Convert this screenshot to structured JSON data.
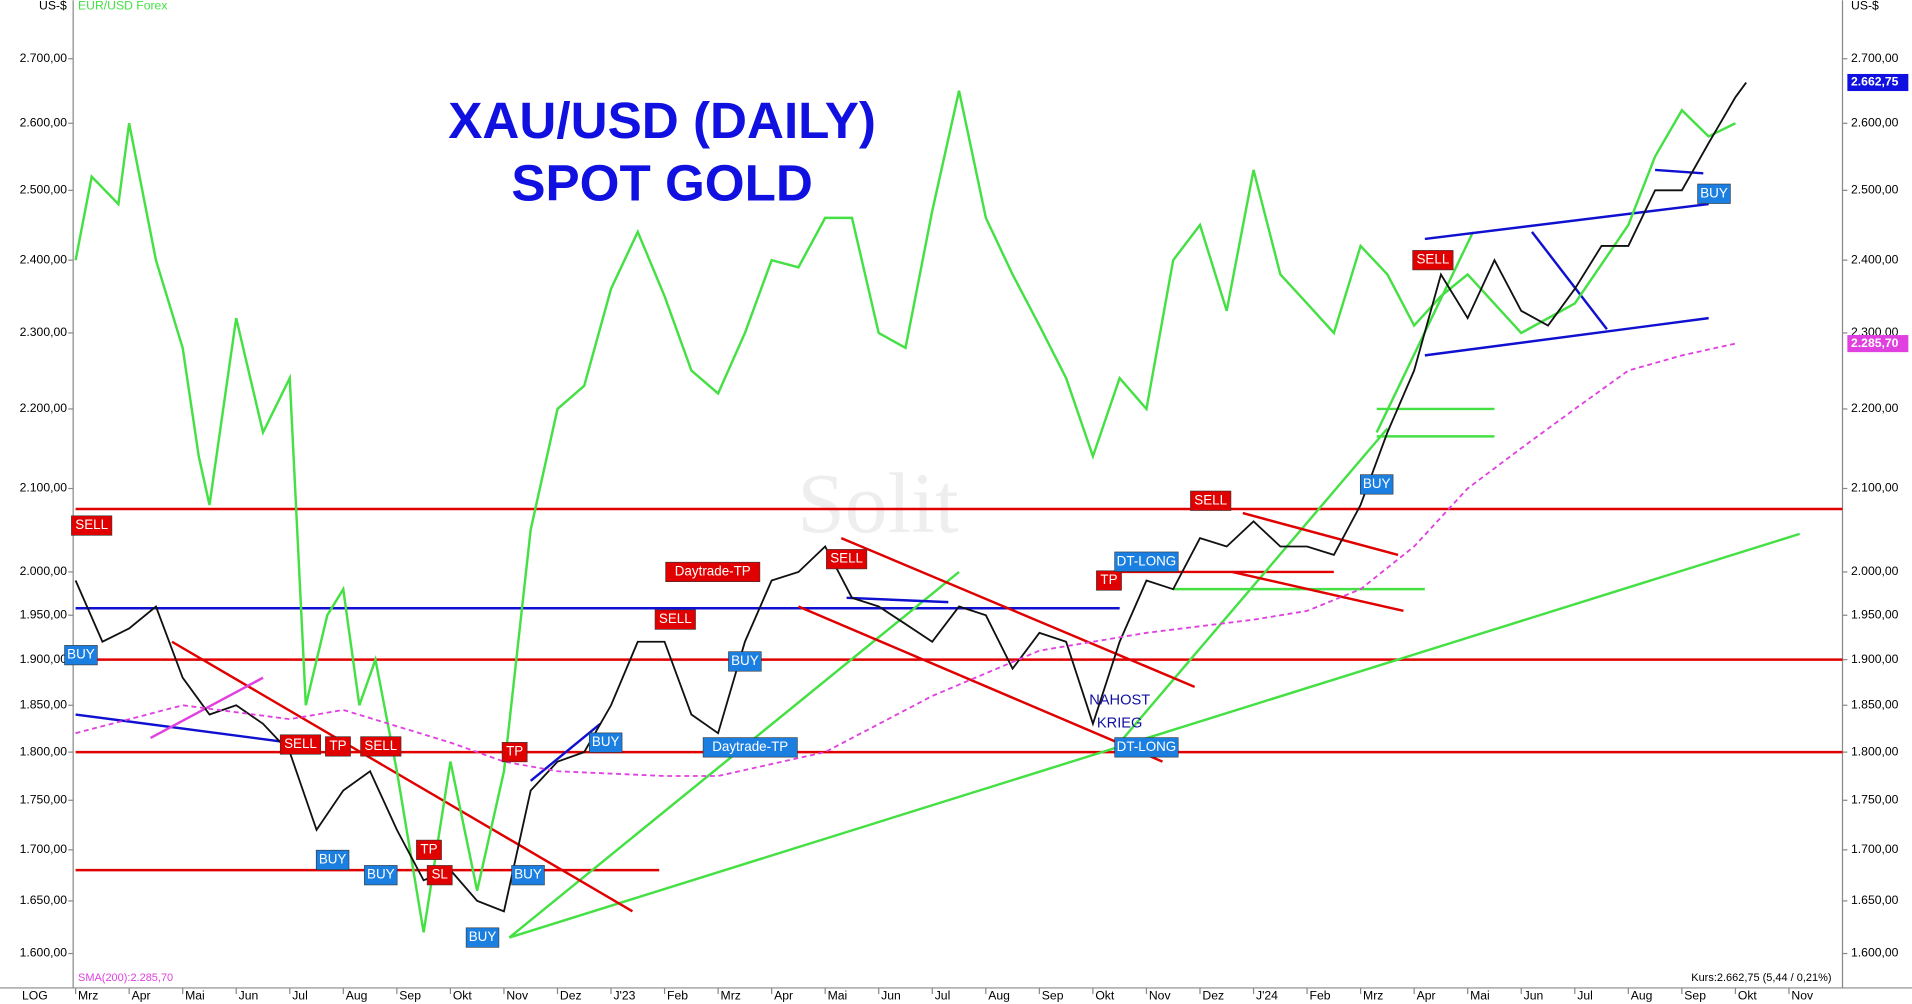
{
  "chart_data": {
    "type": "line",
    "title": "XAU/USD (DAILY)",
    "subtitle": "SPOT GOLD",
    "y_unit": "US-$",
    "overlay_label": "EUR/USD Forex",
    "scale_label": "LOG",
    "watermark": "Solit",
    "log_scale": true,
    "grid": false,
    "xlim": [
      0,
      33
    ],
    "xticks": [
      {
        "value": 0,
        "label": "Mrz"
      },
      {
        "value": 1,
        "label": "Apr"
      },
      {
        "value": 2,
        "label": "Mai"
      },
      {
        "value": 3,
        "label": "Jun"
      },
      {
        "value": 4,
        "label": "Jul"
      },
      {
        "value": 5,
        "label": "Aug"
      },
      {
        "value": 6,
        "label": "Sep"
      },
      {
        "value": 7,
        "label": "Okt"
      },
      {
        "value": 8,
        "label": "Nov"
      },
      {
        "value": 9,
        "label": "Dez"
      },
      {
        "value": 10,
        "label": "J'23"
      },
      {
        "value": 11,
        "label": "Feb"
      },
      {
        "value": 12,
        "label": "Mrz"
      },
      {
        "value": 13,
        "label": "Apr"
      },
      {
        "value": 14,
        "label": "Mai"
      },
      {
        "value": 15,
        "label": "Jun"
      },
      {
        "value": 16,
        "label": "Jul"
      },
      {
        "value": 17,
        "label": "Aug"
      },
      {
        "value": 18,
        "label": "Sep"
      },
      {
        "value": 19,
        "label": "Okt"
      },
      {
        "value": 20,
        "label": "Nov"
      },
      {
        "value": 21,
        "label": "Dez"
      },
      {
        "value": 22,
        "label": "J'24"
      },
      {
        "value": 23,
        "label": "Feb"
      },
      {
        "value": 24,
        "label": "Mrz"
      },
      {
        "value": 25,
        "label": "Apr"
      },
      {
        "value": 26,
        "label": "Mai"
      },
      {
        "value": 27,
        "label": "Jun"
      },
      {
        "value": 28,
        "label": "Jul"
      },
      {
        "value": 29,
        "label": "Aug"
      },
      {
        "value": 30,
        "label": "Sep"
      },
      {
        "value": 31,
        "label": "Okt"
      },
      {
        "value": 32,
        "label": "Nov"
      }
    ],
    "ylim": [
      1585,
      2794
    ],
    "yticks": [
      {
        "value": 1600,
        "label": "1.600,00"
      },
      {
        "value": 1650,
        "label": "1.650,00"
      },
      {
        "value": 1700,
        "label": "1.700,00"
      },
      {
        "value": 1750,
        "label": "1.750,00"
      },
      {
        "value": 1800,
        "label": "1.800,00"
      },
      {
        "value": 1850,
        "label": "1.850,00"
      },
      {
        "value": 1900,
        "label": "1.900,00"
      },
      {
        "value": 1950,
        "label": "1.950,00"
      },
      {
        "value": 2000,
        "label": "2.000,00"
      },
      {
        "value": 2100,
        "label": "2.100,00"
      },
      {
        "value": 2200,
        "label": "2.200,00"
      },
      {
        "value": 2300,
        "label": "2.300,00"
      },
      {
        "value": 2400,
        "label": "2.400,00"
      },
      {
        "value": 2500,
        "label": "2.500,00"
      },
      {
        "value": 2600,
        "label": "2.600,00"
      },
      {
        "value": 2700,
        "label": "2.700,00"
      }
    ],
    "series": [
      {
        "name": "EUR/USD Forex",
        "color": "#44e044",
        "x": [
          0,
          0.3,
          0.8,
          1,
          1.5,
          2,
          2.3,
          2.5,
          3,
          3.5,
          4,
          4.3,
          4.7,
          5,
          5.3,
          5.6,
          6,
          6.5,
          7,
          7.5,
          8,
          8.5,
          9,
          9.5,
          10,
          10.5,
          11,
          11.5,
          12,
          12.5,
          13,
          13.5,
          14,
          14.5,
          15,
          15.5,
          16,
          16.5,
          17,
          17.5,
          18,
          18.5,
          19,
          19.5,
          20,
          20.5,
          21,
          21.5,
          22,
          22.5,
          23,
          23.5,
          24,
          24.5,
          25,
          25.5,
          26,
          27,
          28,
          29,
          29.5,
          30,
          30.5,
          31
        ],
        "values": [
          2400,
          2520,
          2480,
          2600,
          2400,
          2280,
          2140,
          2080,
          2320,
          2170,
          2240,
          1850,
          1950,
          1980,
          1850,
          1900,
          1780,
          1620,
          1790,
          1660,
          1780,
          2050,
          2200,
          2230,
          2360,
          2440,
          2350,
          2250,
          2220,
          2300,
          2400,
          2390,
          2460,
          2460,
          2300,
          2280,
          2470,
          2650,
          2460,
          2380,
          2310,
          2240,
          2140,
          2240,
          2200,
          2400,
          2450,
          2330,
          2530,
          2380,
          2340,
          2300,
          2420,
          2380,
          2310,
          2350,
          2380,
          2300,
          2340,
          2450,
          2550,
          2620,
          2580,
          2600
        ]
      },
      {
        "name": "XAU/USD",
        "color": "#111111",
        "x": [
          0,
          0.5,
          1,
          1.5,
          2,
          2.5,
          3,
          3.5,
          4,
          4.5,
          5,
          5.5,
          6,
          6.5,
          7,
          7.5,
          8,
          8.5,
          9,
          9.5,
          10,
          10.5,
          11,
          11.5,
          12,
          12.5,
          13,
          13.5,
          14,
          14.5,
          15,
          15.5,
          16,
          16.5,
          17,
          17.5,
          18,
          18.5,
          19,
          19.5,
          20,
          20.5,
          21,
          21.5,
          22,
          22.5,
          23,
          23.5,
          24,
          24.5,
          25,
          25.5,
          26,
          26.5,
          27,
          27.5,
          28,
          28.5,
          29,
          29.5,
          30,
          30.5,
          31,
          31.2
        ],
        "values": [
          1990,
          1920,
          1935,
          1960,
          1880,
          1840,
          1850,
          1830,
          1800,
          1720,
          1760,
          1780,
          1720,
          1670,
          1680,
          1650,
          1640,
          1760,
          1790,
          1800,
          1850,
          1920,
          1920,
          1840,
          1820,
          1920,
          1990,
          2000,
          2030,
          1970,
          1960,
          1940,
          1920,
          1960,
          1950,
          1890,
          1930,
          1920,
          1830,
          1920,
          1990,
          1980,
          2040,
          2030,
          2060,
          2030,
          2030,
          2020,
          2080,
          2170,
          2250,
          2380,
          2320,
          2400,
          2330,
          2310,
          2360,
          2420,
          2420,
          2500,
          2500,
          2570,
          2640,
          2662.75
        ]
      },
      {
        "name": "SMA(200):2.285,70",
        "color": "#e040e0",
        "x": [
          0,
          2,
          4,
          5,
          7,
          8,
          9,
          11,
          12,
          14,
          16,
          18,
          20,
          22,
          23,
          24,
          25,
          26,
          27,
          28,
          29,
          30,
          31
        ],
        "values": [
          1820,
          1850,
          1835,
          1845,
          1810,
          1790,
          1780,
          1775,
          1775,
          1800,
          1860,
          1910,
          1930,
          1945,
          1955,
          1980,
          2030,
          2100,
          2150,
          2200,
          2250,
          2270,
          2285.7
        ]
      }
    ],
    "last_price": {
      "value": 2662.75,
      "label": "2.662,75",
      "color": "#1010e0"
    },
    "sma_last": {
      "value": 2285.7,
      "label": "2.285,70",
      "color": "#e040e0"
    },
    "quote": "Kurs:2.662,75 (5,44 / 0,21%)",
    "levels": [
      {
        "value": 2075,
        "from": 0,
        "to": 33,
        "color": "#e00000"
      },
      {
        "value": 2000,
        "from": 19.3,
        "to": 23.5,
        "color": "#e00000"
      },
      {
        "value": 1958,
        "from": 0,
        "to": 19.5,
        "color": "#1010d0"
      },
      {
        "value": 1900,
        "from": 0,
        "to": 33,
        "color": "#e00000"
      },
      {
        "value": 1800,
        "from": 0,
        "to": 33,
        "color": "#e00000"
      },
      {
        "value": 1680,
        "from": 0,
        "to": 10.9,
        "color": "#e00000"
      },
      {
        "value": 1980,
        "from": 20.5,
        "to": 25.2,
        "color": "#44e044"
      },
      {
        "value": 2200,
        "from": 24.3,
        "to": 26.5,
        "color": "#44e044"
      },
      {
        "value": 2165,
        "from": 24.3,
        "to": 26.5,
        "color": "#44e044"
      }
    ],
    "trendlines": [
      {
        "from": [
          8.1,
          1615
        ],
        "to": [
          32.2,
          2045
        ],
        "color": "#44e044"
      },
      {
        "from": [
          8.1,
          1615
        ],
        "to": [
          16.5,
          2000
        ],
        "color": "#44e044"
      },
      {
        "from": [
          19.5,
          1810
        ],
        "to": [
          24.5,
          2175
        ],
        "color": "#44e044"
      },
      {
        "from": [
          24.3,
          2170
        ],
        "to": [
          26.1,
          2440
        ],
        "color": "#44e044"
      },
      {
        "from": [
          1.8,
          1920
        ],
        "to": [
          10.4,
          1640
        ],
        "color": "#e00000"
      },
      {
        "from": [
          14.3,
          2040
        ],
        "to": [
          20.9,
          1870
        ],
        "color": "#e00000"
      },
      {
        "from": [
          13.5,
          1960
        ],
        "to": [
          20.3,
          1790
        ],
        "color": "#e00000"
      },
      {
        "from": [
          21.8,
          2070
        ],
        "to": [
          24.7,
          2020
        ],
        "color": "#e00000"
      },
      {
        "from": [
          21.6,
          2000
        ],
        "to": [
          24.8,
          1955
        ],
        "color": "#e00000"
      },
      {
        "from": [
          0,
          1840
        ],
        "to": [
          4,
          1810
        ],
        "color": "#1010d0"
      },
      {
        "from": [
          25.2,
          2430
        ],
        "to": [
          30.5,
          2480
        ],
        "color": "#1010d0"
      },
      {
        "from": [
          25.2,
          2270
        ],
        "to": [
          30.5,
          2320
        ],
        "color": "#1010d0"
      },
      {
        "from": [
          8.5,
          1770
        ],
        "to": [
          9.8,
          1830
        ],
        "color": "#1010d0"
      },
      {
        "from": [
          14.4,
          1970
        ],
        "to": [
          16.3,
          1965
        ],
        "color": "#1010d0"
      },
      {
        "from": [
          27.2,
          2440
        ],
        "to": [
          28.6,
          2305
        ],
        "color": "#1010d0"
      },
      {
        "from": [
          29.5,
          2530
        ],
        "to": [
          30.4,
          2525
        ],
        "color": "#1010d0"
      },
      {
        "from": [
          1.4,
          1815
        ],
        "to": [
          3.5,
          1880
        ],
        "color": "#e040e0"
      }
    ],
    "annotations": [
      {
        "text": "SELL",
        "x": 0.3,
        "value": 2055,
        "color": "#e00000"
      },
      {
        "text": "BUY",
        "x": 0.1,
        "value": 1905,
        "color": "#1a7fe0"
      },
      {
        "text": "SELL",
        "x": 4.2,
        "value": 1808,
        "color": "#e00000"
      },
      {
        "text": "TP",
        "x": 4.9,
        "value": 1806,
        "color": "#e00000"
      },
      {
        "text": "SELL",
        "x": 5.7,
        "value": 1806,
        "color": "#e00000"
      },
      {
        "text": "BUY",
        "x": 4.8,
        "value": 1690,
        "color": "#1a7fe0"
      },
      {
        "text": "BUY",
        "x": 5.7,
        "value": 1675,
        "color": "#1a7fe0"
      },
      {
        "text": "TP",
        "x": 6.6,
        "value": 1700,
        "color": "#e00000"
      },
      {
        "text": "SL",
        "x": 6.8,
        "value": 1675,
        "color": "#e00000"
      },
      {
        "text": "BUY",
        "x": 7.6,
        "value": 1615,
        "color": "#1a7fe0"
      },
      {
        "text": "TP",
        "x": 8.2,
        "value": 1800,
        "color": "#e00000"
      },
      {
        "text": "BUY",
        "x": 8.45,
        "value": 1675,
        "color": "#1a7fe0"
      },
      {
        "text": "BUY",
        "x": 9.9,
        "value": 1810,
        "color": "#1a7fe0"
      },
      {
        "text": "SELL",
        "x": 11.2,
        "value": 1945,
        "color": "#e00000"
      },
      {
        "text": "Daytrade-TP",
        "x": 11.9,
        "value": 2000,
        "color": "#e00000"
      },
      {
        "text": "BUY",
        "x": 12.5,
        "value": 1898,
        "color": "#1a7fe0"
      },
      {
        "text": "Daytrade-TP",
        "x": 12.6,
        "value": 1805,
        "color": "#1a7fe0"
      },
      {
        "text": "SELL",
        "x": 14.4,
        "value": 2015,
        "color": "#e00000"
      },
      {
        "text": "TP",
        "x": 19.3,
        "value": 1990,
        "color": "#e00000"
      },
      {
        "text": "DT-LONG",
        "x": 20,
        "value": 2012,
        "color": "#1a7fe0"
      },
      {
        "text": "DT-LONG",
        "x": 20,
        "value": 1805,
        "color": "#1a7fe0"
      },
      {
        "text": "SELL",
        "x": 21.2,
        "value": 2085,
        "color": "#e00000"
      },
      {
        "text": "BUY",
        "x": 24.3,
        "value": 2105,
        "color": "#1a7fe0"
      },
      {
        "text": "SELL",
        "x": 25.35,
        "value": 2400,
        "color": "#e00000"
      },
      {
        "text": "BUY",
        "x": 30.6,
        "value": 2495,
        "color": "#1a7fe0"
      }
    ],
    "notes": [
      {
        "text": "NAHOST",
        "x": 19.5,
        "value": 1855
      },
      {
        "text": "KRIEG",
        "x": 19.5,
        "value": 1830
      }
    ]
  }
}
